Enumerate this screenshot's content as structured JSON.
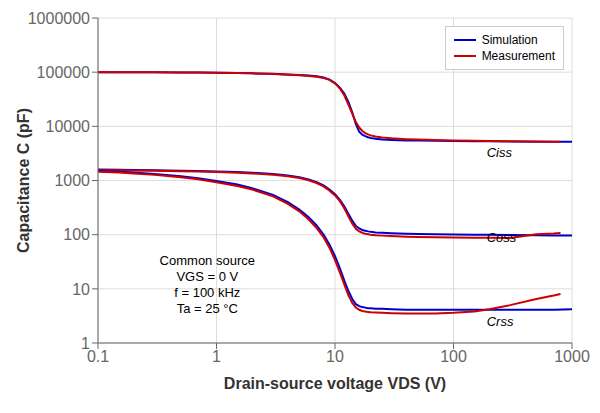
{
  "chart_data": {
    "type": "line",
    "xlabel": "Drain-source voltage VDS (V)",
    "ylabel": "Capacitance C (pF)",
    "log": true,
    "xlim": [
      0.1,
      1000
    ],
    "ylim": [
      1,
      1000000
    ],
    "xticks": [
      0.1,
      1,
      10,
      100,
      1000
    ],
    "yticks": [
      1,
      10,
      100,
      1000,
      10000,
      100000,
      1000000
    ],
    "grid": true,
    "legend": "upper right",
    "annotations": [
      "Ciss",
      "Coss",
      "Crss",
      "Common source\nVGS = 0 V\nf = 100 kHz\nTa = 25 °C"
    ],
    "series": [
      {
        "name": "Simulation",
        "color": "#0000cc",
        "x": [
          0.1,
          0.15,
          0.2,
          0.3,
          0.5,
          0.7,
          1,
          1.5,
          2,
          3,
          4,
          5,
          6,
          7,
          8,
          9,
          10,
          11,
          12,
          13,
          14,
          15,
          16,
          17,
          18,
          19,
          20,
          22,
          25,
          30,
          40,
          50,
          70,
          100,
          150,
          200,
          300,
          500,
          700,
          1000
        ],
        "values": [
          100000,
          100000,
          100000,
          99500,
          99000,
          98500,
          98000,
          97000,
          95000,
          93000,
          91000,
          89000,
          87000,
          84000,
          80000,
          73000,
          63000,
          52000,
          40000,
          28000,
          18000,
          11000,
          8000,
          7000,
          6600,
          6300,
          6100,
          5900,
          5700,
          5600,
          5500,
          5450,
          5400,
          5350,
          5300,
          5280,
          5250,
          5220,
          5200,
          5180
        ]
      },
      {
        "name": "Measurement",
        "color": "#cc0000",
        "x": [
          0.1,
          0.15,
          0.2,
          0.3,
          0.5,
          0.7,
          1,
          1.5,
          2,
          3,
          4,
          5,
          6,
          7,
          8,
          9,
          10,
          11,
          12,
          13,
          14,
          15,
          16,
          17,
          18,
          19,
          20,
          22,
          25,
          30,
          40,
          50,
          70,
          100,
          150,
          200,
          300,
          500,
          700,
          800
        ],
        "values": [
          100000,
          100000,
          100000,
          99500,
          99000,
          98500,
          97500,
          96500,
          95000,
          92500,
          90000,
          88000,
          85000,
          82000,
          78000,
          72000,
          62000,
          50000,
          37000,
          25000,
          17000,
          12000,
          9500,
          8200,
          7500,
          7100,
          6800,
          6500,
          6200,
          6000,
          5800,
          5700,
          5600,
          5500,
          5400,
          5350,
          5300,
          5250,
          5200,
          5180
        ]
      },
      {
        "color": "#0000cc",
        "x": [
          0.1,
          0.15,
          0.2,
          0.3,
          0.5,
          0.7,
          1,
          1.5,
          2,
          3,
          4,
          5,
          6,
          7,
          8,
          9,
          10,
          11,
          12,
          13,
          14,
          15,
          16,
          17,
          18,
          19,
          20,
          22,
          25,
          30,
          40,
          50,
          70,
          100,
          150,
          200,
          300,
          500,
          700,
          1000
        ],
        "values": [
          1600,
          1580,
          1560,
          1540,
          1510,
          1490,
          1470,
          1430,
          1390,
          1320,
          1240,
          1150,
          1050,
          930,
          810,
          680,
          560,
          440,
          330,
          240,
          180,
          145,
          130,
          122,
          118,
          115,
          113,
          110,
          108,
          106,
          104,
          103,
          102,
          101,
          100,
          100,
          99,
          98,
          97,
          97
        ]
      },
      {
        "color": "#cc0000",
        "x": [
          0.1,
          0.15,
          0.2,
          0.3,
          0.5,
          0.7,
          1,
          1.5,
          2,
          3,
          4,
          5,
          6,
          7,
          8,
          9,
          10,
          11,
          12,
          13,
          14,
          15,
          16,
          17,
          18,
          19,
          20,
          22,
          25,
          30,
          40,
          50,
          70,
          100,
          150,
          200,
          300,
          500,
          700,
          800
        ],
        "values": [
          1550,
          1540,
          1530,
          1510,
          1480,
          1460,
          1430,
          1390,
          1350,
          1280,
          1200,
          1110,
          1010,
          900,
          780,
          650,
          530,
          415,
          305,
          215,
          160,
          128,
          115,
          108,
          104,
          102,
          100,
          98,
          96,
          94,
          92,
          91,
          90,
          89,
          88,
          88,
          87,
          102,
          105,
          107
        ]
      },
      {
        "color": "#0000cc",
        "x": [
          0.1,
          0.15,
          0.2,
          0.3,
          0.5,
          0.7,
          1,
          1.5,
          2,
          3,
          4,
          5,
          6,
          7,
          8,
          9,
          10,
          11,
          12,
          13,
          14,
          15,
          16,
          17,
          18,
          19,
          20,
          22,
          25,
          30,
          40,
          50,
          70,
          100,
          150,
          200,
          300,
          500,
          700,
          1000
        ],
        "values": [
          1500,
          1450,
          1400,
          1320,
          1200,
          1100,
          980,
          840,
          720,
          540,
          400,
          290,
          210,
          148,
          100,
          65,
          40,
          24,
          14,
          9,
          6.5,
          5.2,
          4.8,
          4.6,
          4.5,
          4.4,
          4.4,
          4.3,
          4.3,
          4.2,
          4.1,
          4.1,
          4.1,
          4.1,
          4.1,
          4.1,
          4.1,
          4.1,
          4.1,
          4.2
        ]
      },
      {
        "color": "#cc0000",
        "x": [
          0.1,
          0.15,
          0.2,
          0.3,
          0.5,
          0.7,
          1,
          1.5,
          2,
          3,
          4,
          5,
          6,
          7,
          8,
          9,
          10,
          11,
          12,
          13,
          14,
          15,
          16,
          17,
          18,
          19,
          20,
          22,
          25,
          30,
          40,
          50,
          70,
          100,
          150,
          200,
          300,
          500,
          700,
          800
        ],
        "values": [
          1450,
          1400,
          1350,
          1270,
          1150,
          1050,
          930,
          790,
          680,
          510,
          370,
          270,
          190,
          132,
          90,
          57,
          34,
          20,
          12,
          7.5,
          5.5,
          4.5,
          4.1,
          3.9,
          3.8,
          3.75,
          3.7,
          3.65,
          3.6,
          3.55,
          3.5,
          3.5,
          3.5,
          3.6,
          3.8,
          4.2,
          5.0,
          6.5,
          7.5,
          8.0
        ]
      }
    ]
  }
}
